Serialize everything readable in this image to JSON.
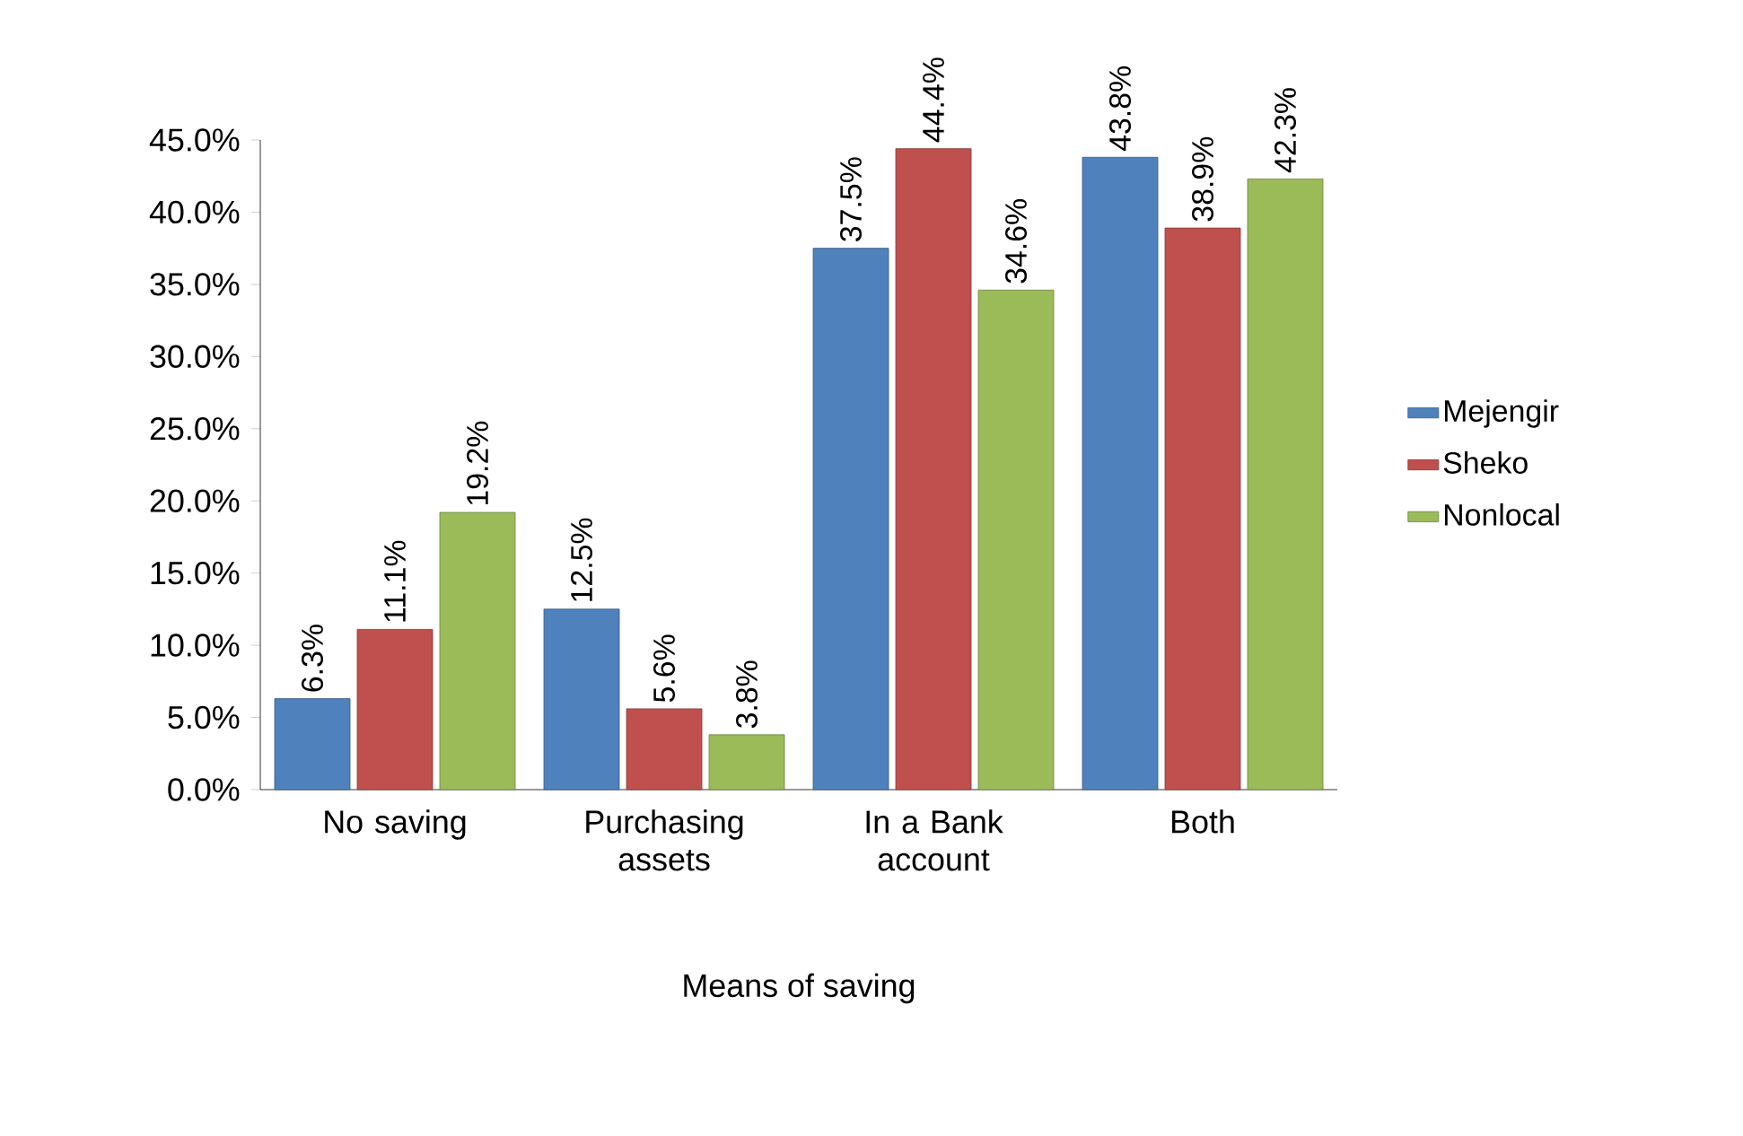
{
  "chart_data": {
    "type": "bar",
    "xlabel": "Means of  saving",
    "categories": [
      "No saving",
      "Purchasing assets",
      "In a Bank account",
      "Both"
    ],
    "series": [
      {
        "name": "Mejengir",
        "color": "#4f81bd",
        "values": [
          6.3,
          12.5,
          37.5,
          43.8
        ],
        "value_labels": [
          "6.3%",
          "12.5%",
          "37.5%",
          "43.8%"
        ]
      },
      {
        "name": "Sheko",
        "color": "#c0504d",
        "values": [
          11.1,
          5.6,
          44.4,
          38.9
        ],
        "value_labels": [
          "11.1%",
          "5.6%",
          "44.4%",
          "38.9%"
        ]
      },
      {
        "name": "Nonlocal",
        "color": "#9bbb59",
        "values": [
          19.2,
          3.8,
          34.6,
          42.3
        ],
        "value_labels": [
          "19.2%",
          "3.8%",
          "34.6%",
          "42.3%"
        ]
      }
    ],
    "ylim": [
      0,
      45
    ],
    "yticks": [
      {
        "value": 0,
        "label": "0.0%"
      },
      {
        "value": 5,
        "label": "5.0%"
      },
      {
        "value": 10,
        "label": "10.0%"
      },
      {
        "value": 15,
        "label": "15.0%"
      },
      {
        "value": 20,
        "label": "20.0%"
      },
      {
        "value": 25,
        "label": "25.0%"
      },
      {
        "value": 30,
        "label": "30.0%"
      },
      {
        "value": 35,
        "label": "35.0%"
      },
      {
        "value": 40,
        "label": "40.0%"
      },
      {
        "value": 45,
        "label": "45.0%"
      }
    ],
    "legend": "right",
    "grid": false
  }
}
